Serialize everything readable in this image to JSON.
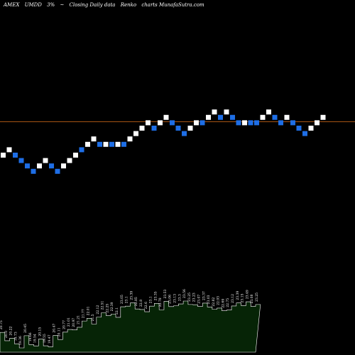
{
  "header": {
    "exchange": "AMEX",
    "symbol": "UMDD",
    "change": "3%",
    "marker": "~",
    "chart_label": "Closing Daily data",
    "chart_type": "Renko",
    "site": "charts MunafaSutra.com"
  },
  "colors": {
    "up": "#ffffff",
    "down": "#1e6ee6",
    "reference_line": "#b05a14",
    "volume_fill": "#062406",
    "volume_stroke": "#ffffff",
    "background": "#000000"
  },
  "chart_data": {
    "type": "renko",
    "bricks": [
      {
        "level": 0,
        "dir": "up"
      },
      {
        "level": 1,
        "dir": "up"
      },
      {
        "level": 0,
        "dir": "down"
      },
      {
        "level": -1,
        "dir": "down"
      },
      {
        "level": -2,
        "dir": "down"
      },
      {
        "level": -3,
        "dir": "down"
      },
      {
        "level": -2,
        "dir": "up"
      },
      {
        "level": -1,
        "dir": "up"
      },
      {
        "level": -2,
        "dir": "down"
      },
      {
        "level": -3,
        "dir": "down"
      },
      {
        "level": -2,
        "dir": "up"
      },
      {
        "level": -1,
        "dir": "up"
      },
      {
        "level": 0,
        "dir": "up"
      },
      {
        "level": 1,
        "dir": "down"
      },
      {
        "level": 2,
        "dir": "up"
      },
      {
        "level": 3,
        "dir": "up"
      },
      {
        "level": 2,
        "dir": "down"
      },
      {
        "level": 2,
        "dir": "up"
      },
      {
        "level": 2,
        "dir": "down"
      },
      {
        "level": 2,
        "dir": "up"
      },
      {
        "level": 2,
        "dir": "down"
      },
      {
        "level": 3,
        "dir": "up"
      },
      {
        "level": 4,
        "dir": "up"
      },
      {
        "level": 5,
        "dir": "up"
      },
      {
        "level": 6,
        "dir": "up"
      },
      {
        "level": 5,
        "dir": "down"
      },
      {
        "level": 6,
        "dir": "up"
      },
      {
        "level": 7,
        "dir": "up"
      },
      {
        "level": 6,
        "dir": "down"
      },
      {
        "level": 5,
        "dir": "down"
      },
      {
        "level": 4,
        "dir": "down"
      },
      {
        "level": 5,
        "dir": "up"
      },
      {
        "level": 6,
        "dir": "up"
      },
      {
        "level": 6,
        "dir": "down"
      },
      {
        "level": 7,
        "dir": "up"
      },
      {
        "level": 8,
        "dir": "up"
      },
      {
        "level": 7,
        "dir": "down"
      },
      {
        "level": 8,
        "dir": "up"
      },
      {
        "level": 7,
        "dir": "down"
      },
      {
        "level": 6,
        "dir": "down"
      },
      {
        "level": 6,
        "dir": "up"
      },
      {
        "level": 6,
        "dir": "down"
      },
      {
        "level": 6,
        "dir": "down"
      },
      {
        "level": 7,
        "dir": "up"
      },
      {
        "level": 8,
        "dir": "up"
      },
      {
        "level": 7,
        "dir": "down"
      },
      {
        "level": 6,
        "dir": "down"
      },
      {
        "level": 7,
        "dir": "up"
      },
      {
        "level": 6,
        "dir": "down"
      },
      {
        "level": 5,
        "dir": "down"
      },
      {
        "level": 4,
        "dir": "down"
      },
      {
        "level": 5,
        "dir": "up"
      },
      {
        "level": 6,
        "dir": "up"
      },
      {
        "level": 7,
        "dir": "up"
      }
    ],
    "reference_level": 6,
    "volume_labels": [
      "20.75",
      "20.0",
      "20.22",
      "19.73",
      "19.36",
      "20.45",
      "19.66",
      "19.54",
      "20.15",
      "19.55",
      "19.47",
      "20.47",
      "20.11",
      "20.77",
      "21.01",
      "20.97",
      "21.21",
      "21.77",
      "22.01",
      "21.5",
      "22.12",
      "22.51",
      "22.25",
      "22.39",
      "22.1",
      "23.05",
      "23.1",
      "23.39",
      "22.85",
      "22.8",
      "22.6",
      "23.1",
      "23.35",
      "22.78",
      "23.53",
      "23.06",
      "23.13",
      "23.3",
      "23.56",
      "23.25",
      "23.23",
      "23.07",
      "23.37",
      "23.03",
      "22.82",
      "22.93",
      "22.69",
      "22.75",
      "23.12",
      "23.39",
      "23.15",
      "23.49",
      "23.08",
      "23.25"
    ]
  }
}
